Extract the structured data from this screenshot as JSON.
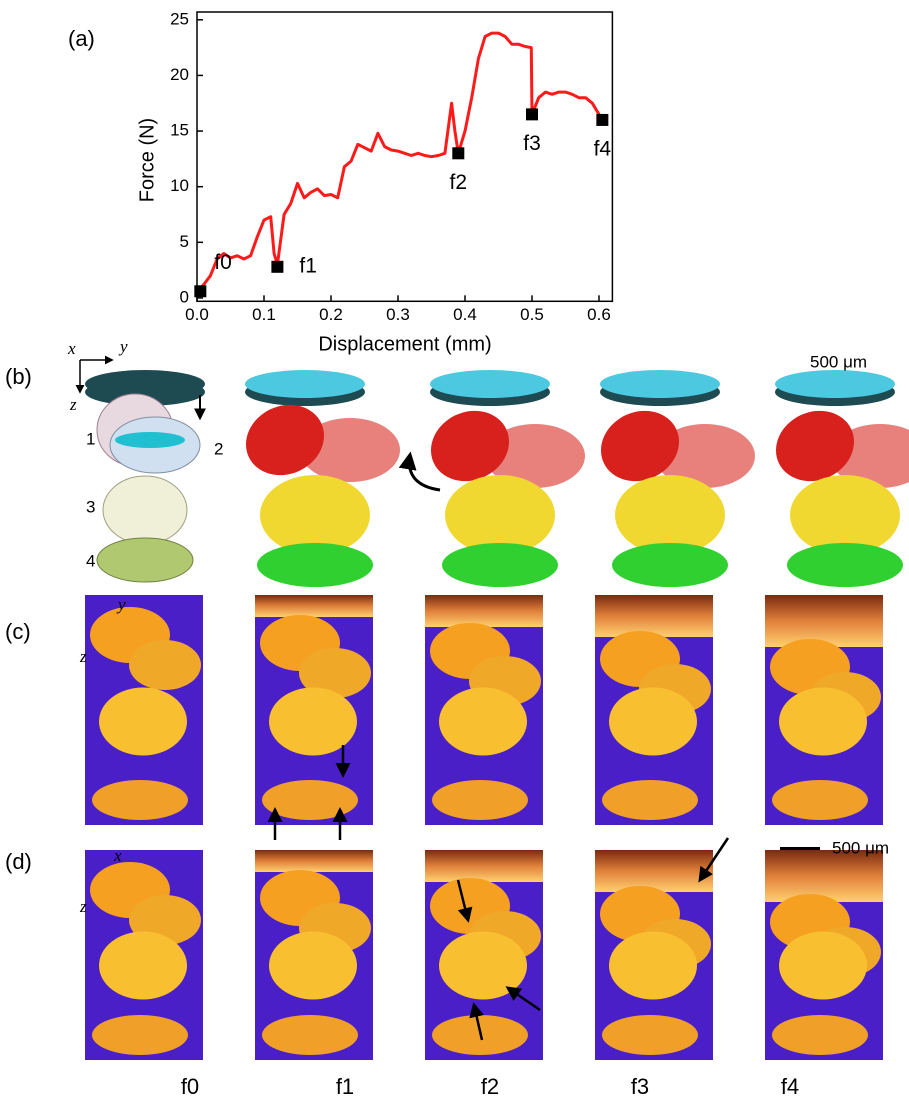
{
  "chart_data": {
    "type": "line",
    "panel_label": "(a)",
    "x_label": "Displacement (mm)",
    "y_label": "Force (N)",
    "xlim": [
      0,
      0.62
    ],
    "ylim": [
      -0.3,
      25.7
    ],
    "xticks": [
      {
        "value": 0,
        "label": "0.0"
      },
      0.1,
      0.2,
      0.3,
      0.4,
      0.5,
      0.6
    ],
    "yticks": [
      0,
      5,
      10,
      15,
      20,
      25
    ],
    "color": "#ff1a1a",
    "x": [
      0,
      0.01,
      0.02,
      0.03,
      0.04,
      0.05,
      0.06,
      0.07,
      0.08,
      0.09,
      0.1,
      0.11,
      0.115,
      0.12,
      0.13,
      0.14,
      0.15,
      0.16,
      0.17,
      0.18,
      0.19,
      0.2,
      0.21,
      0.22,
      0.23,
      0.24,
      0.25,
      0.26,
      0.27,
      0.28,
      0.29,
      0.3,
      0.31,
      0.32,
      0.33,
      0.34,
      0.35,
      0.36,
      0.37,
      0.38,
      0.385,
      0.39,
      0.4,
      0.41,
      0.42,
      0.43,
      0.44,
      0.45,
      0.46,
      0.47,
      0.48,
      0.49,
      0.499,
      0.5,
      0.51,
      0.52,
      0.53,
      0.54,
      0.55,
      0.56,
      0.57,
      0.58,
      0.59,
      0.6,
      0.605
    ],
    "values": [
      0.5,
      1.2,
      2,
      3.5,
      4,
      3.6,
      3.8,
      3.5,
      3.8,
      5.5,
      7,
      7.3,
      4,
      3,
      7.5,
      8.5,
      10.3,
      9,
      9.5,
      9.8,
      9.2,
      9.3,
      9,
      11.8,
      12.3,
      13.8,
      13.5,
      13.2,
      14.8,
      13.6,
      13.3,
      13.2,
      13,
      12.8,
      13,
      12.8,
      12.7,
      12.8,
      13,
      17.5,
      15,
      13,
      15,
      18,
      21.5,
      23.5,
      23.8,
      23.8,
      23.5,
      22.8,
      22.8,
      22.6,
      22.5,
      16.5,
      18,
      18.5,
      18.3,
      18.5,
      18.5,
      18.3,
      18,
      18,
      17.5,
      16.5,
      16
    ],
    "points": {
      "x": [
        0.005,
        0.12,
        0.39,
        0.5,
        0.605
      ],
      "values": [
        0.6,
        2.8,
        13,
        16.5,
        16
      ],
      "labels": [
        "f0",
        "f1",
        "f2",
        "f3",
        "f4"
      ]
    }
  },
  "panels": {
    "b": {
      "label": "(b)",
      "axes": [
        "x",
        "y",
        "z"
      ],
      "numbers": [
        "1",
        "2",
        "3",
        "4"
      ],
      "scale": "500 μm"
    },
    "c": {
      "label": "(c)",
      "axes": [
        "y",
        "z"
      ]
    },
    "d": {
      "label": "(d)",
      "axes": [
        "x",
        "z"
      ],
      "scale": "500 μm"
    },
    "frames": [
      "f0",
      "f1",
      "f2",
      "f3",
      "f4"
    ]
  }
}
